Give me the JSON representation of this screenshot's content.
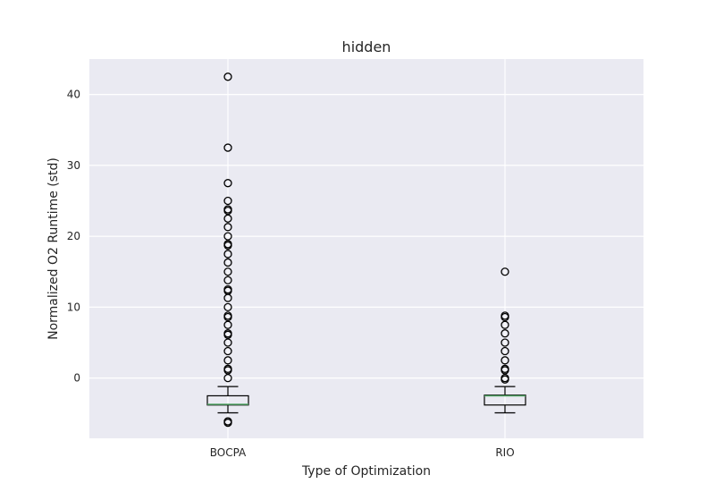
{
  "chart_data": {
    "type": "box",
    "title": "hidden",
    "xlabel": "Type of Optimization",
    "ylabel": "Normalized O2 Runtime (std)",
    "ylim": [
      -8.5,
      45
    ],
    "yticks": [
      0,
      10,
      20,
      30,
      40
    ],
    "grid": true,
    "categories": [
      "BOCPA",
      "RIO"
    ],
    "boxes": [
      {
        "category": "BOCPA",
        "whisker_low": -4.9,
        "q1": -3.8,
        "median": -3.7,
        "q3": -2.5,
        "whisker_high": -1.2,
        "outliers": [
          42.5,
          32.5,
          27.5,
          25.0,
          23.8,
          23.6,
          22.5,
          21.3,
          20.0,
          18.9,
          18.7,
          17.5,
          16.3,
          15.0,
          13.8,
          12.5,
          12.3,
          11.3,
          10.0,
          8.8,
          8.6,
          7.5,
          6.3,
          6.1,
          5.0,
          3.8,
          2.5,
          1.3,
          1.1,
          0.0,
          -6.1,
          -6.3
        ]
      },
      {
        "category": "RIO",
        "whisker_low": -4.9,
        "q1": -3.8,
        "median": -2.5,
        "q3": -2.4,
        "whisker_high": -1.2,
        "outliers": [
          15.0,
          8.8,
          8.6,
          7.5,
          6.3,
          5.0,
          3.8,
          2.5,
          1.3,
          1.1,
          0.0,
          -0.2
        ]
      }
    ],
    "colors": {
      "plot_background": "#eaeaf2",
      "grid": "#ffffff",
      "box": "#000000",
      "median": "#55a868",
      "outlier": "#000000"
    }
  }
}
